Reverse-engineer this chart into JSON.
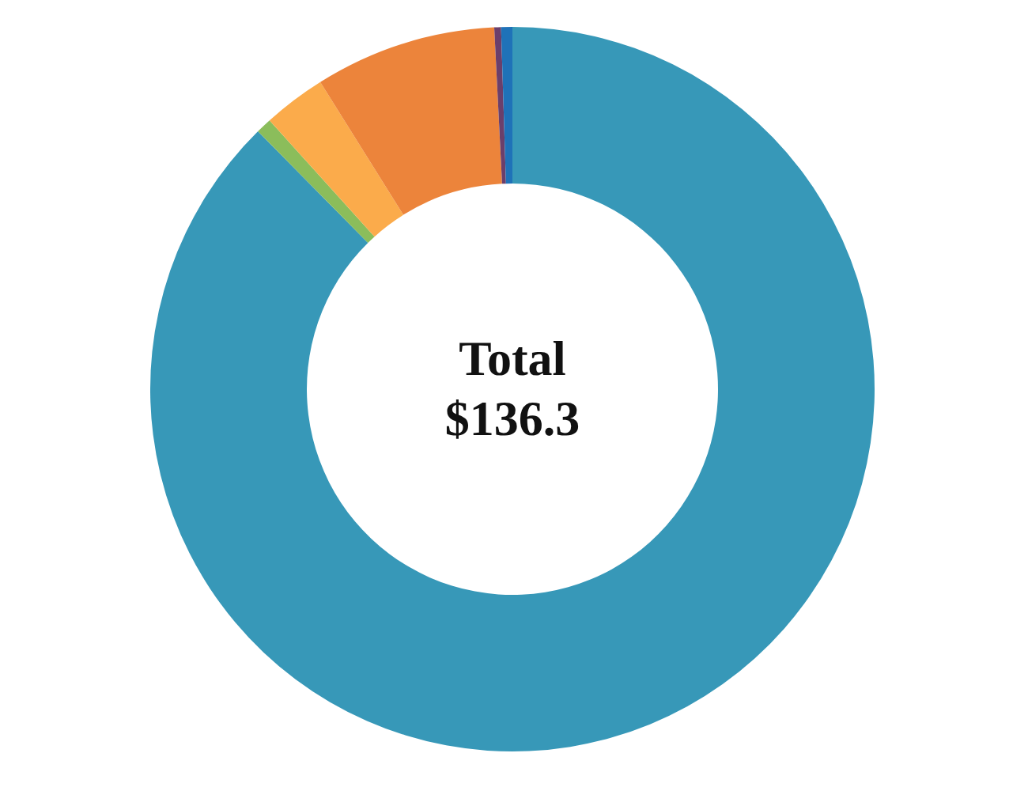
{
  "chart_data": {
    "type": "donut",
    "categories": [
      null,
      null,
      null,
      null,
      null,
      null
    ],
    "values": [
      87.6,
      0.7,
      2.8,
      8.1,
      0.3,
      0.5
    ],
    "colors": [
      "#3798b8",
      "#8bbd5b",
      "#fbab4b",
      "#ec843b",
      "#6b3f6b",
      "#1f72b8"
    ],
    "annotations": [
      "Total",
      "$136.3"
    ]
  }
}
